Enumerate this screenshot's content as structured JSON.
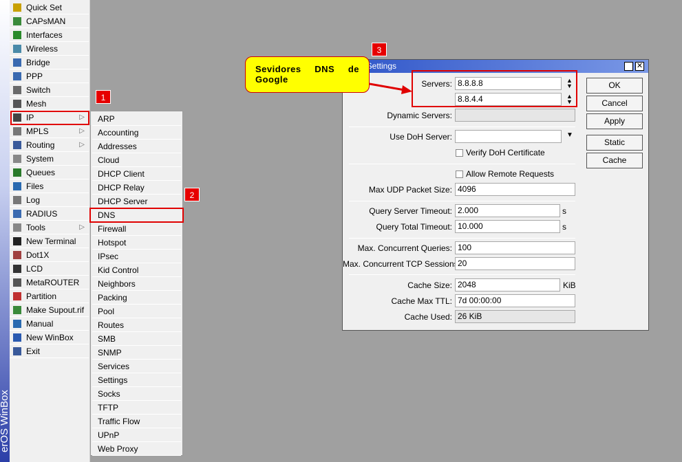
{
  "sidebar": {
    "brand": "erOS WinBox",
    "menu": [
      "Quick Set",
      "CAPsMAN",
      "Interfaces",
      "Wireless",
      "Bridge",
      "PPP",
      "Switch",
      "Mesh",
      "IP",
      "MPLS",
      "Routing",
      "System",
      "Queues",
      "Files",
      "Log",
      "RADIUS",
      "Tools",
      "New Terminal",
      "Dot1X",
      "LCD",
      "MetaROUTER",
      "Partition",
      "Make Supout.rif",
      "Manual",
      "New WinBox",
      "Exit"
    ]
  },
  "submenu": {
    "items": [
      "ARP",
      "Accounting",
      "Addresses",
      "Cloud",
      "DHCP Client",
      "DHCP Relay",
      "DHCP Server",
      "DNS",
      "Firewall",
      "Hotspot",
      "IPsec",
      "Kid Control",
      "Neighbors",
      "Packing",
      "Pool",
      "Routes",
      "SMB",
      "SNMP",
      "Services",
      "Settings",
      "Socks",
      "TFTP",
      "Traffic Flow",
      "UPnP",
      "Web Proxy"
    ]
  },
  "markers": [
    "1",
    "2",
    "3"
  ],
  "callout": "Sevidores DNS de Google",
  "dns_window": {
    "title": "DNS Settings",
    "fields": [
      {
        "label": "Servers:",
        "values": [
          "8.8.8.8",
          "8.8.4.4"
        ]
      },
      {
        "label": "Dynamic Servers:"
      },
      {
        "label": "Use DoH Server:"
      },
      {
        "label": "Max UDP Packet Size:",
        "value": "4096"
      },
      {
        "label": "Query Server Timeout:",
        "value": "2.000",
        "unit": "s"
      },
      {
        "label": "Query Total Timeout:",
        "value": "10.000",
        "unit": "s"
      },
      {
        "label": "Max. Concurrent Queries:",
        "value": "100"
      },
      {
        "label": "Max. Concurrent TCP Sessions:",
        "value": "20"
      },
      {
        "label": "Cache Size:",
        "value": "2048",
        "unit": "KiB"
      },
      {
        "label": "Cache Max TTL:",
        "value": "7d 00:00:00"
      },
      {
        "label": "Cache Used:",
        "value": "26 KiB"
      }
    ],
    "checkboxes": [
      "Verify DoH Certificate",
      "Allow Remote Requests"
    ],
    "buttons": [
      "OK",
      "Cancel",
      "Apply",
      "Static",
      "Cache"
    ]
  }
}
